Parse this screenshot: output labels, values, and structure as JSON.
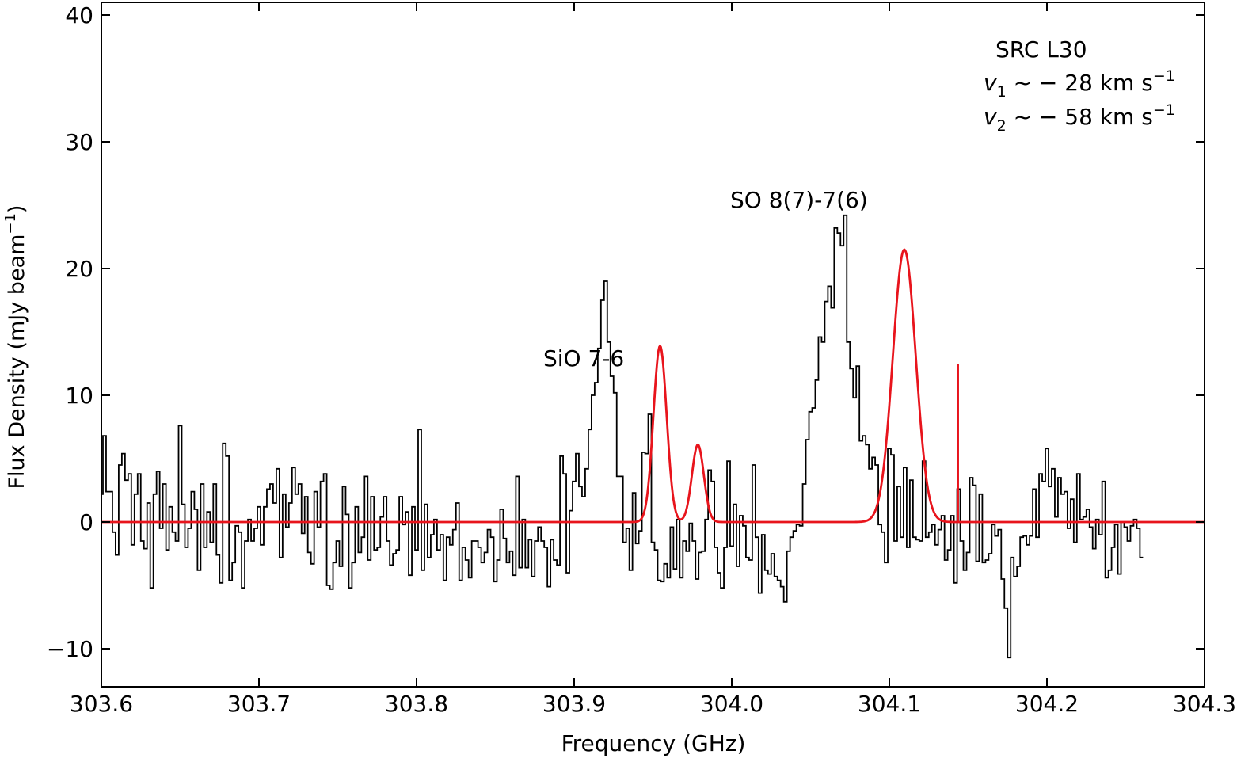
{
  "chart_data": {
    "type": "line",
    "xlabel": "Frequency (GHz)",
    "ylabel": "Flux Density (mJy beam",
    "ylabel_sup": "−1",
    "ylabel_tail": ")",
    "xlim": [
      303.6,
      304.3
    ],
    "ylim": [
      -13.0,
      41.0
    ],
    "xticks": [
      303.6,
      303.7,
      303.8,
      303.9,
      304.0,
      304.1,
      304.2,
      304.3
    ],
    "xtick_labels": [
      "303.6",
      "303.7",
      "303.8",
      "303.9",
      "304.0",
      "304.1",
      "304.2",
      "304.3"
    ],
    "yticks": [
      -10,
      0,
      10,
      20,
      30,
      40
    ],
    "ytick_labels": [
      "−10",
      "0",
      "10",
      "20",
      "30",
      "40"
    ],
    "grid": false,
    "colors": {
      "spectrum": "#000000",
      "fit": "#e8141c"
    },
    "annotations": {
      "source": "SRC L30",
      "v1": {
        "symbol": "v",
        "sub": "1",
        "text": " ~ − 28 km s",
        "sup": "−1"
      },
      "v2": {
        "symbol": "v",
        "sub": "2",
        "text": " ~ − 58 km s",
        "sup": "−1"
      },
      "sio_label": "SiO 7-6",
      "so_label": "SO 8(7)-7(6)"
    },
    "series": [
      {
        "kind": "spectrum",
        "style": "steps-mid",
        "x_start": 303.6,
        "x_step": 0.002,
        "values": [
          2.2,
          6.8,
          2.4,
          2.4,
          -0.8,
          -2.6,
          4.5,
          5.4,
          3.3,
          3.8,
          -1.8,
          2.2,
          3.8,
          -1.5,
          -2.1,
          1.5,
          -5.2,
          2.2,
          4.0,
          -0.5,
          3.0,
          -2.2,
          1.2,
          -0.8,
          -1.5,
          7.6,
          1.4,
          -2.0,
          -0.5,
          2.4,
          1.0,
          -3.8,
          3.0,
          -2.0,
          0.8,
          -1.6,
          3.0,
          -2.6,
          -4.8,
          6.2,
          5.2,
          -4.6,
          -3.2,
          -0.3,
          -0.8,
          -5.2,
          -1.5,
          0.2,
          -1.5,
          -0.5,
          1.2,
          -1.8,
          1.2,
          2.6,
          3.0,
          1.5,
          4.2,
          -2.8,
          2.2,
          -0.4,
          1.5,
          4.3,
          2.2,
          3.0,
          -0.9,
          2.0,
          -2.4,
          -3.3,
          2.4,
          -0.4,
          3.2,
          3.8,
          -5.0,
          -5.3,
          -3.2,
          -1.5,
          -3.5,
          2.8,
          0.6,
          -5.2,
          -3.2,
          1.2,
          -2.4,
          -1.2,
          3.6,
          -3.0,
          2.0,
          -2.2,
          -2.0,
          0.4,
          2.0,
          -1.5,
          -3.4,
          -2.5,
          -2.2,
          2.0,
          -0.2,
          0.8,
          -4.2,
          1.2,
          -2.2,
          7.3,
          -3.8,
          1.4,
          -2.8,
          -1.0,
          0.2,
          -2.2,
          -1.0,
          -4.6,
          -1.2,
          -1.8,
          -0.6,
          1.5,
          -4.6,
          -2.0,
          -3.0,
          -4.4,
          -1.5,
          -1.5,
          -2.0,
          -3.2,
          -2.4,
          -0.6,
          -1.2,
          -4.7,
          -3.0,
          1.0,
          -1.3,
          -3.2,
          -2.3,
          -4.2,
          3.6,
          -3.6,
          0.2,
          -3.6,
          -1.4,
          -4.3,
          -1.5,
          -0.4,
          -1.5,
          -2.0,
          -5.1,
          -1.4,
          -3.0,
          -3.4,
          5.2,
          3.8,
          -4.0,
          0.9,
          3.2,
          5.4,
          2.8,
          2.0,
          4.2,
          7.3,
          10.0,
          11.0,
          13.7,
          17.5,
          19.0,
          14.2,
          11.5,
          10.2,
          3.6,
          3.6,
          -1.6,
          -0.5,
          -3.8,
          2.3,
          -1.7,
          -0.7,
          5.5,
          5.4,
          8.5,
          -1.6,
          -2.2,
          -4.6,
          -4.7,
          -3.3,
          -4.4,
          -0.4,
          -3.7,
          0.2,
          -4.4,
          -1.5,
          -2.3,
          -0.1,
          -1.5,
          -4.5,
          -2.4,
          -2.3,
          0.2,
          4.1,
          3.2,
          -2.0,
          -4.0,
          -5.2,
          -2.0,
          4.8,
          -1.9,
          1.4,
          -3.5,
          0.5,
          -0.3,
          -2.8,
          -3.0,
          4.5,
          -1.2,
          -5.6,
          -1.0,
          -3.8,
          -4.1,
          -2.5,
          -4.3,
          -4.6,
          -5.1,
          -6.3,
          -2.3,
          -1.2,
          -0.7,
          -0.2,
          -0.3,
          3.0,
          6.5,
          8.7,
          9.0,
          11.2,
          14.6,
          14.2,
          17.4,
          18.6,
          16.9,
          23.2,
          22.8,
          21.8,
          24.2,
          14.2,
          12.1,
          9.8,
          12.3,
          6.4,
          6.8,
          6.1,
          4.2,
          5.1,
          4.5,
          -0.2,
          -0.8,
          -3.2,
          5.8,
          5.3,
          -1.5,
          2.8,
          -1.2,
          4.3,
          -2.0,
          3.3,
          -1.2,
          -1.4,
          -1.5,
          4.8,
          -1.2,
          -0.8,
          -0.2,
          -1.8,
          -0.6,
          0.5,
          -3.0,
          -2.2,
          0.5,
          -4.8,
          2.6,
          -1.5,
          -3.8,
          -2.4,
          3.5,
          2.9,
          -3.1,
          2.2,
          -3.2,
          -3.0,
          -2.5,
          -0.2,
          -1.1,
          -0.6,
          -4.5,
          -6.8,
          -10.7,
          -2.8,
          -4.3,
          -3.5,
          -1.2,
          -1.1,
          -1.8,
          -1.1,
          2.6,
          -1.2,
          3.8,
          3.2,
          5.8,
          2.8,
          4.2,
          0.4,
          3.5,
          2.2,
          2.4,
          -0.5,
          1.8,
          -1.6,
          3.8,
          0.2,
          0.4,
          1.0,
          -0.4,
          -2.1,
          0.2,
          -1.0,
          3.2,
          -4.4,
          -3.8,
          -2.0,
          -0.2,
          -4.1,
          0.0,
          -0.4,
          -1.5,
          -0.3,
          0.2,
          -0.5,
          -2.8
        ]
      },
      {
        "kind": "gaussian-fit",
        "components": [
          {
            "amplitude": 13.9,
            "center": 303.9545,
            "sigma": 0.0042
          },
          {
            "amplitude": 6.1,
            "center": 303.9785,
            "sigma": 0.0038
          },
          {
            "amplitude": 21.5,
            "center": 304.1095,
            "sigma": 0.0073
          }
        ],
        "spike": {
          "x": 304.1435,
          "top": 12.5
        }
      }
    ]
  }
}
